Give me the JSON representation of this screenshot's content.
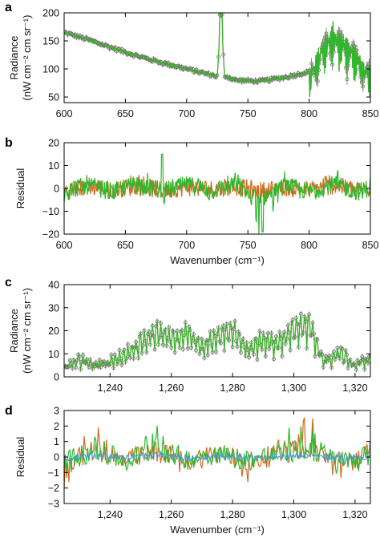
{
  "colors": {
    "observed": "#6e6e6e",
    "model_a": "#d2691e",
    "model_b": "#2db82d",
    "model_c": "#3aa0d8"
  },
  "chart_data": [
    {
      "panel": "a",
      "type": "line",
      "ylabel_line1": "Radiance",
      "ylabel_line2": "(nW cm⁻² cm sr⁻¹)",
      "xlabel": "",
      "xlim": [
        600,
        850
      ],
      "ylim": [
        40,
        200
      ],
      "xticks": [
        600,
        650,
        700,
        750,
        800,
        850
      ],
      "xtick_labels": [
        "600",
        "650",
        "700",
        "750",
        "800",
        "850"
      ],
      "yticks": [
        50,
        100,
        150,
        200
      ],
      "ytick_labels": [
        "50",
        "100",
        "150",
        "200"
      ],
      "series": [
        {
          "role": "observed-with-errorbars",
          "x": [
            600,
            620,
            640,
            660,
            680,
            700,
            715,
            725,
            728,
            731,
            740,
            760,
            780,
            790,
            800,
            810,
            820,
            830,
            840,
            850
          ],
          "values": [
            165,
            152,
            137,
            123,
            111,
            100,
            92,
            87,
            195,
            88,
            80,
            78,
            85,
            90,
            95,
            150,
            180,
            160,
            130,
            100
          ]
        },
        {
          "role": "model",
          "x": [
            600,
            620,
            640,
            660,
            680,
            700,
            715,
            725,
            728,
            731,
            740,
            760,
            780,
            790,
            800,
            810,
            820,
            830,
            840,
            850
          ],
          "values": [
            165,
            152,
            137,
            123,
            111,
            100,
            92,
            87,
            195,
            88,
            80,
            78,
            85,
            90,
            95,
            150,
            180,
            160,
            130,
            100
          ]
        }
      ]
    },
    {
      "panel": "b",
      "type": "line",
      "ylabel": "Residual",
      "xlabel": "Wavenumber (cm⁻¹)",
      "xlim": [
        600,
        850
      ],
      "ylim": [
        -20,
        20
      ],
      "xticks": [
        600,
        650,
        700,
        750,
        800,
        850
      ],
      "xtick_labels": [
        "600",
        "650",
        "700",
        "750",
        "800",
        "850"
      ],
      "yticks": [
        -20,
        -10,
        0,
        10,
        20
      ],
      "ytick_labels": [
        "−20",
        "−10",
        "0",
        "10",
        "20"
      ],
      "series": [
        {
          "role": "residual-a",
          "x": [
            600,
            620,
            640,
            660,
            680,
            700,
            720,
            740,
            760,
            780,
            800,
            820,
            840,
            850
          ],
          "values": [
            -5,
            3,
            -2,
            4,
            -3,
            2,
            -1,
            3,
            -4,
            2,
            -2,
            5,
            -3,
            1
          ]
        },
        {
          "role": "residual-b",
          "x": [
            600,
            620,
            640,
            660,
            680,
            700,
            720,
            740,
            760,
            780,
            800,
            820,
            840,
            850
          ],
          "values": [
            -3,
            5,
            -6,
            8,
            -4,
            6,
            -3,
            5,
            -19,
            4,
            -5,
            7,
            -6,
            2
          ]
        }
      ]
    },
    {
      "panel": "c",
      "type": "line",
      "ylabel_line1": "Radiance",
      "ylabel_line2": "(nW cm⁻² cm sr⁻¹)",
      "xlabel": "",
      "xlim": [
        1225,
        1325
      ],
      "ylim": [
        0,
        40
      ],
      "xticks": [
        1240,
        1260,
        1280,
        1300,
        1320
      ],
      "xtick_labels": [
        "1,240",
        "1,260",
        "1,280",
        "1,300",
        "1,320"
      ],
      "yticks": [
        0,
        10,
        20,
        30,
        40
      ],
      "ytick_labels": [
        "0",
        "10",
        "20",
        "30",
        "40"
      ],
      "series": [
        {
          "role": "observed-with-errorbars",
          "x": [
            1225,
            1230,
            1235,
            1240,
            1245,
            1250,
            1255,
            1260,
            1265,
            1270,
            1275,
            1280,
            1285,
            1290,
            1295,
            1300,
            1305,
            1310,
            1315,
            1320,
            1325
          ],
          "values": [
            5,
            9,
            6,
            8,
            12,
            18,
            24,
            20,
            23,
            15,
            21,
            25,
            14,
            20,
            18,
            26,
            27,
            8,
            13,
            6,
            10
          ]
        },
        {
          "role": "model",
          "x": [
            1225,
            1230,
            1235,
            1240,
            1245,
            1250,
            1255,
            1260,
            1265,
            1270,
            1275,
            1280,
            1285,
            1290,
            1295,
            1300,
            1305,
            1310,
            1315,
            1320,
            1325
          ],
          "values": [
            5,
            9,
            6,
            8,
            12,
            18,
            24,
            20,
            23,
            15,
            21,
            25,
            14,
            20,
            18,
            26,
            27,
            8,
            13,
            6,
            10
          ]
        }
      ]
    },
    {
      "panel": "d",
      "type": "line",
      "ylabel": "Residual",
      "xlabel": "Wavenumber (cm⁻¹)",
      "xlim": [
        1225,
        1325
      ],
      "ylim": [
        -3,
        3
      ],
      "xticks": [
        1240,
        1260,
        1280,
        1300,
        1320
      ],
      "xtick_labels": [
        "1,240",
        "1,260",
        "1,280",
        "1,300",
        "1,320"
      ],
      "yticks": [
        -3,
        -2,
        -1,
        0,
        1,
        2,
        3
      ],
      "ytick_labels": [
        "−3",
        "−2",
        "−1",
        "0",
        "1",
        "2",
        "3"
      ],
      "series": [
        {
          "role": "residual-a",
          "x": [
            1225,
            1235,
            1245,
            1255,
            1265,
            1275,
            1285,
            1295,
            1305,
            1315,
            1325
          ],
          "values": [
            -1.5,
            1.8,
            -1.0,
            1.2,
            -0.8,
            0.9,
            -1.1,
            0.7,
            2.3,
            -1.4,
            0.5
          ]
        },
        {
          "role": "residual-b",
          "x": [
            1225,
            1235,
            1245,
            1255,
            1265,
            1275,
            1285,
            1295,
            1305,
            1315,
            1325
          ],
          "values": [
            -1.0,
            1.5,
            -0.9,
            1.8,
            -0.6,
            1.0,
            -0.8,
            0.9,
            2.0,
            -1.2,
            0.4
          ]
        },
        {
          "role": "residual-c",
          "x": [
            1225,
            1235,
            1245,
            1255,
            1265,
            1275,
            1285,
            1295,
            1305,
            1315,
            1325
          ],
          "values": [
            -0.3,
            0.4,
            -0.2,
            0.3,
            -0.2,
            0.2,
            -0.3,
            0.2,
            0.4,
            -0.3,
            0.1
          ]
        }
      ]
    }
  ]
}
